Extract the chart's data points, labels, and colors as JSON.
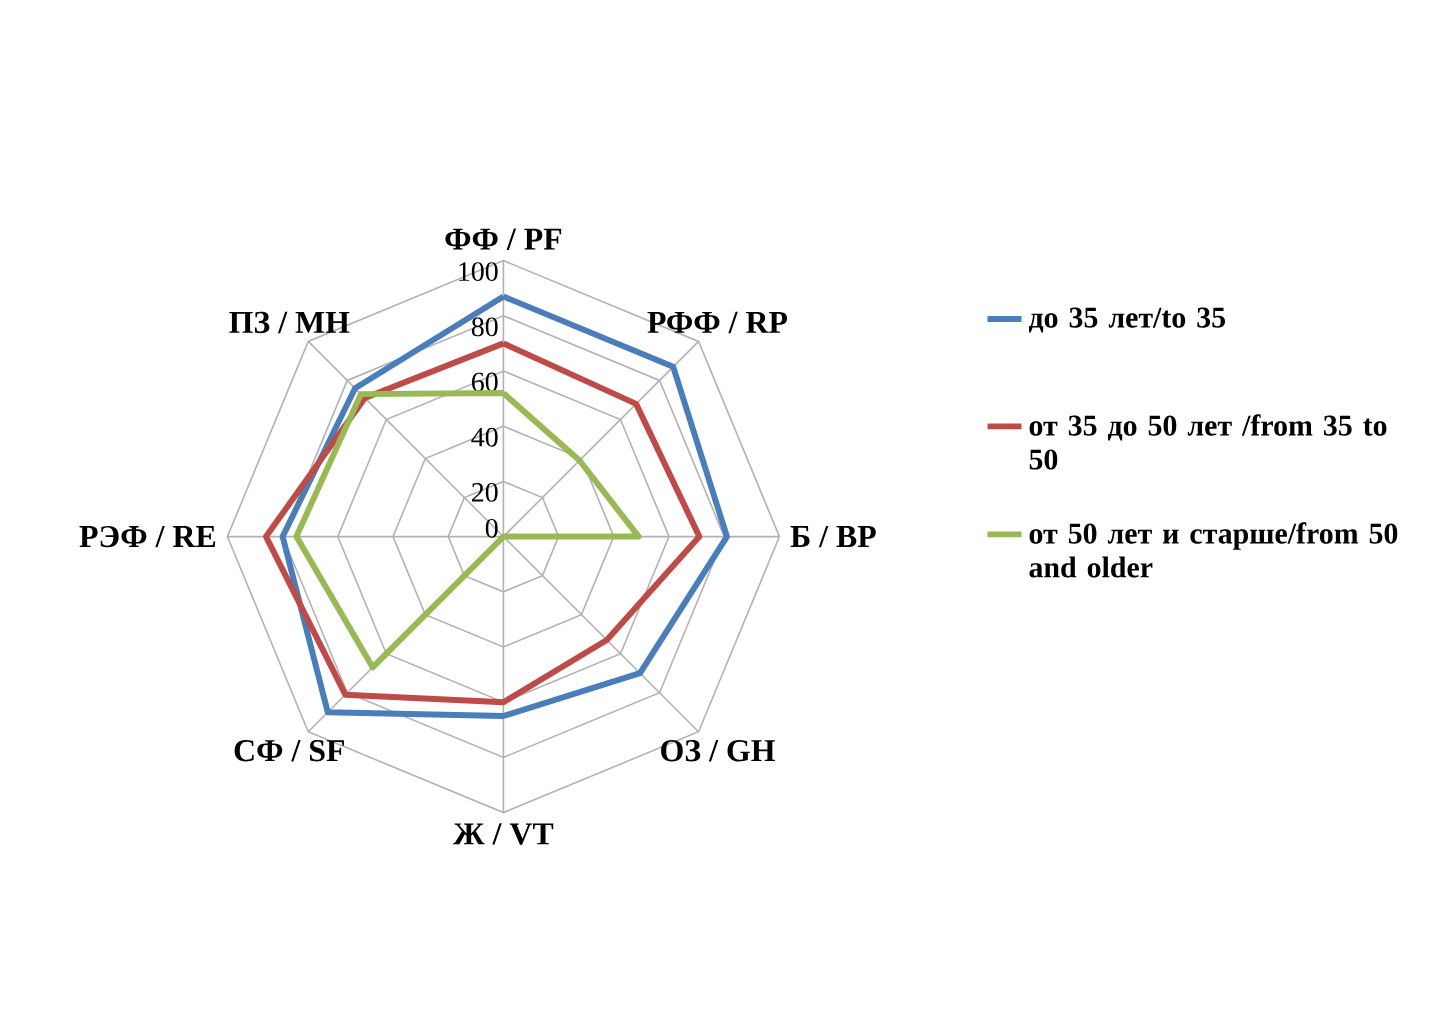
{
  "chart_data": {
    "type": "radar",
    "categories": [
      "ФФ / PF",
      "РФФ / RP",
      "Б / BP",
      "ОЗ / GH",
      "Ж / VT",
      "СФ / SF",
      "РЭФ / RE",
      "ПЗ / MH"
    ],
    "series": [
      {
        "name": "до 35 лет/to 35",
        "color": "#4a7ebb",
        "values": [
          87,
          87,
          81,
          70,
          65,
          90,
          80,
          76
        ]
      },
      {
        "name": "от 35 до 50 лет /from 35 to 50",
        "color": "#be4b48",
        "values": [
          70,
          68,
          71,
          53,
          60,
          81,
          86,
          71
        ]
      },
      {
        "name": "от 50 лет и старше/from 50 and older",
        "color": "#98b954",
        "values": [
          52,
          39,
          49,
          0,
          0,
          67,
          75,
          73
        ]
      }
    ],
    "ylim": [
      0,
      100
    ],
    "yticks": [
      0,
      20,
      40,
      60,
      80,
      100
    ],
    "grid": true,
    "legend": "right"
  }
}
